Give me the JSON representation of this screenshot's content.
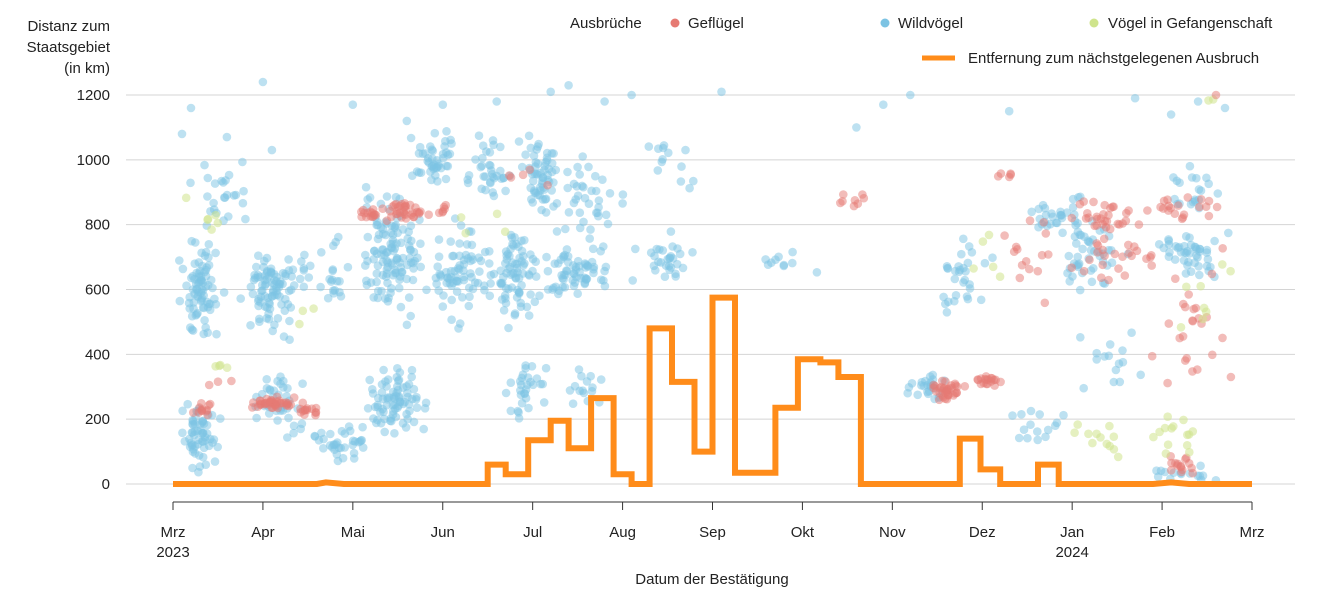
{
  "chart_data": {
    "type": "scatter",
    "title": "",
    "ylabel_lines": [
      "Distanz zum",
      "Staatsgebiet",
      "(in km)"
    ],
    "xlabel": "Datum der Bestätigung",
    "ylim": [
      0,
      1240
    ],
    "yticks": [
      0,
      200,
      400,
      600,
      800,
      1000,
      1200
    ],
    "x_unit": "months since 2023-03-01",
    "xlim": [
      0,
      12
    ],
    "xticks": [
      {
        "x": 0,
        "month": "Mrz",
        "year": "2023"
      },
      {
        "x": 1,
        "month": "Apr",
        "year": ""
      },
      {
        "x": 2,
        "month": "Mai",
        "year": ""
      },
      {
        "x": 3,
        "month": "Jun",
        "year": ""
      },
      {
        "x": 4,
        "month": "Jul",
        "year": ""
      },
      {
        "x": 5,
        "month": "Aug",
        "year": ""
      },
      {
        "x": 6,
        "month": "Sep",
        "year": ""
      },
      {
        "x": 7,
        "month": "Okt",
        "year": ""
      },
      {
        "x": 8,
        "month": "Nov",
        "year": ""
      },
      {
        "x": 9,
        "month": "Dez",
        "year": ""
      },
      {
        "x": 10,
        "month": "Jan",
        "year": "2024"
      },
      {
        "x": 11,
        "month": "Feb",
        "year": ""
      },
      {
        "x": 12,
        "month": "Mrz",
        "year": ""
      }
    ],
    "legend": {
      "title": "Ausbrüche",
      "items": [
        {
          "key": "poultry",
          "label": "Geflügel",
          "color": "#e67a73"
        },
        {
          "key": "wild",
          "label": "Wildvögel",
          "color": "#7cc3e3"
        },
        {
          "key": "captive",
          "label": "Vögel in Gefangenschaft",
          "color": "#cfe48c"
        }
      ],
      "line_label": "Entfernung zum nächstgelegenen Ausbruch",
      "line_color": "#ff8c1a"
    },
    "series": [
      {
        "name": "Entfernung zum nächstgelegenen Ausbruch",
        "type": "step",
        "color": "#ff8c1a",
        "points": [
          [
            0,
            0
          ],
          [
            1.6,
            0
          ],
          [
            1.7,
            5
          ],
          [
            1.9,
            0
          ],
          [
            3.5,
            0
          ],
          [
            3.5,
            60
          ],
          [
            3.7,
            60
          ],
          [
            3.7,
            30
          ],
          [
            3.95,
            30
          ],
          [
            3.95,
            135
          ],
          [
            4.2,
            135
          ],
          [
            4.2,
            195
          ],
          [
            4.4,
            195
          ],
          [
            4.4,
            110
          ],
          [
            4.65,
            110
          ],
          [
            4.65,
            265
          ],
          [
            4.9,
            265
          ],
          [
            4.9,
            30
          ],
          [
            5.1,
            30
          ],
          [
            5.1,
            0
          ],
          [
            5.3,
            0
          ],
          [
            5.3,
            480
          ],
          [
            5.55,
            480
          ],
          [
            5.55,
            315
          ],
          [
            5.8,
            315
          ],
          [
            5.8,
            100
          ],
          [
            6.0,
            100
          ],
          [
            6.0,
            575
          ],
          [
            6.25,
            575
          ],
          [
            6.25,
            35
          ],
          [
            6.7,
            35
          ],
          [
            6.7,
            235
          ],
          [
            6.95,
            235
          ],
          [
            6.95,
            385
          ],
          [
            7.2,
            385
          ],
          [
            7.2,
            375
          ],
          [
            7.4,
            375
          ],
          [
            7.4,
            330
          ],
          [
            7.65,
            330
          ],
          [
            7.65,
            0
          ],
          [
            8.75,
            0
          ],
          [
            8.75,
            140
          ],
          [
            8.98,
            140
          ],
          [
            8.98,
            45
          ],
          [
            9.2,
            45
          ],
          [
            9.2,
            0
          ],
          [
            9.62,
            0
          ],
          [
            9.62,
            60
          ],
          [
            9.85,
            60
          ],
          [
            9.85,
            0
          ],
          [
            10.9,
            0
          ],
          [
            11.1,
            5
          ],
          [
            11.3,
            0
          ],
          [
            12,
            0
          ]
        ]
      }
    ],
    "scatter_model": {
      "note": "Point clouds per outbreak group: center x (months), center distance (km), spread x, spread y, point count",
      "poultry": [
        [
          0.3,
          230,
          0.15,
          40,
          12
        ],
        [
          0.5,
          320,
          0.2,
          20,
          3
        ],
        [
          1.1,
          250,
          0.3,
          25,
          40
        ],
        [
          1.5,
          225,
          0.2,
          40,
          14
        ],
        [
          2.2,
          830,
          0.2,
          30,
          15
        ],
        [
          2.6,
          840,
          0.35,
          35,
          35
        ],
        [
          3.0,
          850,
          0.1,
          20,
          6
        ],
        [
          4.0,
          950,
          0.4,
          40,
          5
        ],
        [
          7.6,
          880,
          0.4,
          80,
          8
        ],
        [
          8.6,
          290,
          0.25,
          40,
          35
        ],
        [
          9.1,
          310,
          0.2,
          40,
          18
        ],
        [
          9.3,
          950,
          0.2,
          20,
          5
        ],
        [
          9.5,
          700,
          0.4,
          200,
          15
        ],
        [
          10.4,
          820,
          0.5,
          80,
          30
        ],
        [
          10.5,
          700,
          0.7,
          100,
          25
        ],
        [
          11.2,
          850,
          0.6,
          60,
          20
        ],
        [
          11.3,
          500,
          0.6,
          280,
          25
        ],
        [
          11.3,
          60,
          0.5,
          60,
          15
        ]
      ],
      "wild": [
        [
          0.3,
          600,
          0.3,
          200,
          80
        ],
        [
          0.3,
          150,
          0.3,
          120,
          60
        ],
        [
          0.5,
          900,
          0.4,
          150,
          25
        ],
        [
          1.1,
          600,
          0.4,
          180,
          90
        ],
        [
          1.2,
          250,
          0.4,
          150,
          40
        ],
        [
          1.7,
          650,
          0.4,
          150,
          25
        ],
        [
          1.9,
          120,
          0.4,
          80,
          35
        ],
        [
          2.4,
          700,
          0.5,
          250,
          120
        ],
        [
          2.5,
          250,
          0.5,
          150,
          80
        ],
        [
          2.9,
          1000,
          0.3,
          120,
          45
        ],
        [
          3.2,
          650,
          0.4,
          200,
          70
        ],
        [
          3.5,
          980,
          0.3,
          150,
          35
        ],
        [
          3.8,
          650,
          0.4,
          200,
          80
        ],
        [
          3.9,
          300,
          0.3,
          150,
          30
        ],
        [
          4.1,
          950,
          0.3,
          170,
          60
        ],
        [
          4.5,
          650,
          0.5,
          100,
          60
        ],
        [
          4.6,
          850,
          0.5,
          200,
          40
        ],
        [
          4.6,
          300,
          0.3,
          100,
          15
        ],
        [
          5.5,
          700,
          0.5,
          100,
          30
        ],
        [
          5.5,
          970,
          0.5,
          100,
          12
        ],
        [
          6.8,
          680,
          0.5,
          60,
          10
        ],
        [
          8.4,
          300,
          0.3,
          60,
          25
        ],
        [
          8.8,
          650,
          0.4,
          150,
          30
        ],
        [
          9.6,
          200,
          0.4,
          100,
          15
        ],
        [
          9.8,
          850,
          0.5,
          100,
          30
        ],
        [
          10.2,
          700,
          0.5,
          150,
          45
        ],
        [
          10.5,
          400,
          0.5,
          200,
          15
        ],
        [
          11.3,
          700,
          0.6,
          120,
          45
        ],
        [
          11.3,
          900,
          0.5,
          100,
          20
        ],
        [
          11.2,
          30,
          0.6,
          30,
          15
        ]
      ],
      "captive": [
        [
          0.3,
          820,
          0.4,
          100,
          6
        ],
        [
          0.6,
          350,
          0.3,
          80,
          4
        ],
        [
          1.4,
          520,
          0.3,
          80,
          3
        ],
        [
          3.5,
          800,
          0.4,
          100,
          4
        ],
        [
          9.0,
          700,
          0.4,
          150,
          5
        ],
        [
          10.3,
          130,
          0.5,
          100,
          12
        ],
        [
          11.2,
          150,
          0.5,
          120,
          14
        ],
        [
          11.5,
          600,
          0.5,
          300,
          8
        ],
        [
          11.5,
          1190,
          0.3,
          10,
          2
        ]
      ],
      "sparse": [
        [
          0.1,
          1080,
          "wild"
        ],
        [
          0.2,
          1160,
          "wild"
        ],
        [
          0.6,
          1070,
          "wild"
        ],
        [
          1.0,
          1240,
          "wild"
        ],
        [
          1.1,
          1030,
          "wild"
        ],
        [
          2.0,
          1170,
          "wild"
        ],
        [
          2.6,
          1120,
          "wild"
        ],
        [
          3.0,
          1170,
          "wild"
        ],
        [
          3.6,
          1180,
          "wild"
        ],
        [
          4.2,
          1210,
          "wild"
        ],
        [
          4.4,
          1230,
          "wild"
        ],
        [
          4.8,
          1180,
          "wild"
        ],
        [
          5.1,
          1200,
          "wild"
        ],
        [
          5.7,
          1030,
          "wild"
        ],
        [
          6.1,
          1210,
          "wild"
        ],
        [
          7.6,
          1100,
          "wild"
        ],
        [
          7.9,
          1170,
          "wild"
        ],
        [
          8.2,
          1200,
          "wild"
        ],
        [
          9.3,
          1150,
          "wild"
        ],
        [
          10.7,
          1190,
          "wild"
        ],
        [
          11.1,
          1140,
          "wild"
        ],
        [
          11.4,
          1180,
          "wild"
        ],
        [
          11.6,
          1200,
          "poultry"
        ],
        [
          11.7,
          1160,
          "wild"
        ]
      ]
    }
  }
}
